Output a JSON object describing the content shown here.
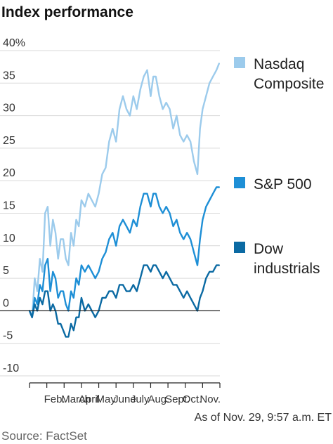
{
  "chart_data": {
    "type": "line",
    "title": "Index performance",
    "y_unit_label": "40%",
    "y_ticks": [
      40,
      35,
      30,
      25,
      20,
      15,
      10,
      5,
      0,
      -5,
      -10
    ],
    "y_tick_labels": [
      "40%",
      "35",
      "30",
      "25",
      "20",
      "15",
      "10",
      "5",
      "0",
      "-5",
      "-10"
    ],
    "ylim": [
      -10,
      40
    ],
    "x_unit": "month (1 = Jan 1)",
    "xlim": [
      1.0,
      12.0
    ],
    "months": [
      {
        "label": "Feb.",
        "pos": 2.0
      },
      {
        "label": "March",
        "pos": 3.0
      },
      {
        "label": "April",
        "pos": 4.0
      },
      {
        "label": "May",
        "pos": 5.0
      },
      {
        "label": "June",
        "pos": 6.0
      },
      {
        "label": "July",
        "pos": 7.0
      },
      {
        "label": "Aug.",
        "pos": 8.0
      },
      {
        "label": "Sept.",
        "pos": 9.0
      },
      {
        "label": "Oct.",
        "pos": 10.0
      },
      {
        "label": "Nov.",
        "pos": 11.0
      }
    ],
    "grid": true,
    "legend_position": "right",
    "series": [
      {
        "name": "Nasdaq Composite",
        "label_lines": [
          "Nasdaq",
          "Composite"
        ],
        "color": "#9ccbec",
        "x": [
          1.0,
          1.15,
          1.3,
          1.45,
          1.6,
          1.75,
          1.9,
          2.05,
          2.2,
          2.35,
          2.5,
          2.65,
          2.8,
          2.95,
          3.1,
          3.25,
          3.4,
          3.55,
          3.7,
          3.85,
          4.0,
          4.2,
          4.4,
          4.6,
          4.8,
          5.0,
          5.2,
          5.4,
          5.6,
          5.8,
          6.0,
          6.2,
          6.4,
          6.6,
          6.8,
          7.0,
          7.2,
          7.4,
          7.6,
          7.8,
          8.0,
          8.15,
          8.3,
          8.5,
          8.7,
          8.9,
          9.1,
          9.3,
          9.5,
          9.7,
          9.9,
          10.1,
          10.3,
          10.5,
          10.7,
          10.85,
          11.0,
          11.2,
          11.4,
          11.6,
          11.8,
          11.95
        ],
        "y": [
          0,
          -1,
          5,
          3,
          8,
          6,
          15,
          16,
          10,
          14,
          12,
          8,
          11,
          11,
          8,
          7,
          12,
          10,
          14,
          13,
          17,
          16,
          18,
          17,
          16,
          18,
          21,
          22,
          26,
          28,
          26,
          31,
          33,
          31,
          30,
          33,
          31,
          34,
          36,
          37,
          33,
          36,
          36,
          33,
          31,
          32,
          31,
          28,
          30,
          27,
          26,
          27,
          26,
          23,
          21,
          28,
          31,
          33,
          35,
          36,
          37,
          38
        ]
      },
      {
        "name": "S&P 500",
        "label_lines": [
          "S&P 500"
        ],
        "color": "#1e8fd6",
        "x": [
          1.0,
          1.15,
          1.3,
          1.45,
          1.6,
          1.75,
          1.9,
          2.05,
          2.2,
          2.35,
          2.5,
          2.65,
          2.8,
          2.95,
          3.1,
          3.25,
          3.4,
          3.55,
          3.7,
          3.85,
          4.0,
          4.2,
          4.4,
          4.6,
          4.8,
          5.0,
          5.2,
          5.4,
          5.6,
          5.8,
          6.0,
          6.2,
          6.4,
          6.6,
          6.8,
          7.0,
          7.2,
          7.4,
          7.6,
          7.8,
          8.0,
          8.15,
          8.3,
          8.5,
          8.7,
          8.9,
          9.1,
          9.3,
          9.5,
          9.7,
          9.9,
          10.1,
          10.3,
          10.5,
          10.7,
          10.85,
          11.0,
          11.2,
          11.4,
          11.6,
          11.8,
          11.95
        ],
        "y": [
          0,
          -1,
          2,
          1,
          4,
          3,
          7,
          8,
          3,
          6,
          5,
          2,
          3,
          3,
          1,
          0,
          3,
          2,
          5,
          4,
          7,
          6,
          7,
          6,
          5,
          6,
          8,
          9,
          11,
          12,
          10,
          13,
          14,
          13,
          12,
          14,
          13,
          16,
          18,
          18,
          16,
          18,
          18,
          16,
          15,
          16,
          15,
          13,
          14,
          12,
          11,
          12,
          11,
          9,
          7,
          11,
          14,
          16,
          17,
          18,
          19,
          19
        ]
      },
      {
        "name": "Dow industrials",
        "label_lines": [
          "Dow",
          "industrials"
        ],
        "color": "#0b6aa3",
        "x": [
          1.0,
          1.15,
          1.3,
          1.45,
          1.6,
          1.75,
          1.9,
          2.05,
          2.2,
          2.35,
          2.5,
          2.65,
          2.8,
          2.95,
          3.1,
          3.25,
          3.4,
          3.55,
          3.7,
          3.85,
          4.0,
          4.2,
          4.4,
          4.6,
          4.8,
          5.0,
          5.2,
          5.4,
          5.6,
          5.8,
          6.0,
          6.2,
          6.4,
          6.6,
          6.8,
          7.0,
          7.2,
          7.4,
          7.6,
          7.8,
          8.0,
          8.15,
          8.3,
          8.5,
          8.7,
          8.9,
          9.1,
          9.3,
          9.5,
          9.7,
          9.9,
          10.1,
          10.3,
          10.5,
          10.7,
          10.85,
          11.0,
          11.2,
          11.4,
          11.6,
          11.8,
          11.95
        ],
        "y": [
          0,
          -1,
          1,
          0,
          2,
          1,
          3,
          3,
          0,
          1,
          0,
          -2,
          -2,
          -3,
          -4,
          -4,
          -2,
          -3,
          -1,
          -1,
          2,
          0,
          1,
          0,
          -1,
          0,
          2,
          2,
          3,
          3,
          2,
          4,
          4,
          3,
          3,
          4,
          3,
          5,
          7,
          7,
          6,
          7,
          7,
          6,
          5,
          6,
          5,
          4,
          4,
          3,
          2,
          3,
          2,
          1,
          0,
          2,
          3,
          5,
          6,
          6,
          7,
          7
        ]
      }
    ],
    "annotation": "As of Nov. 29, 9:57 a.m. ET",
    "source": "Source: FactSet"
  }
}
